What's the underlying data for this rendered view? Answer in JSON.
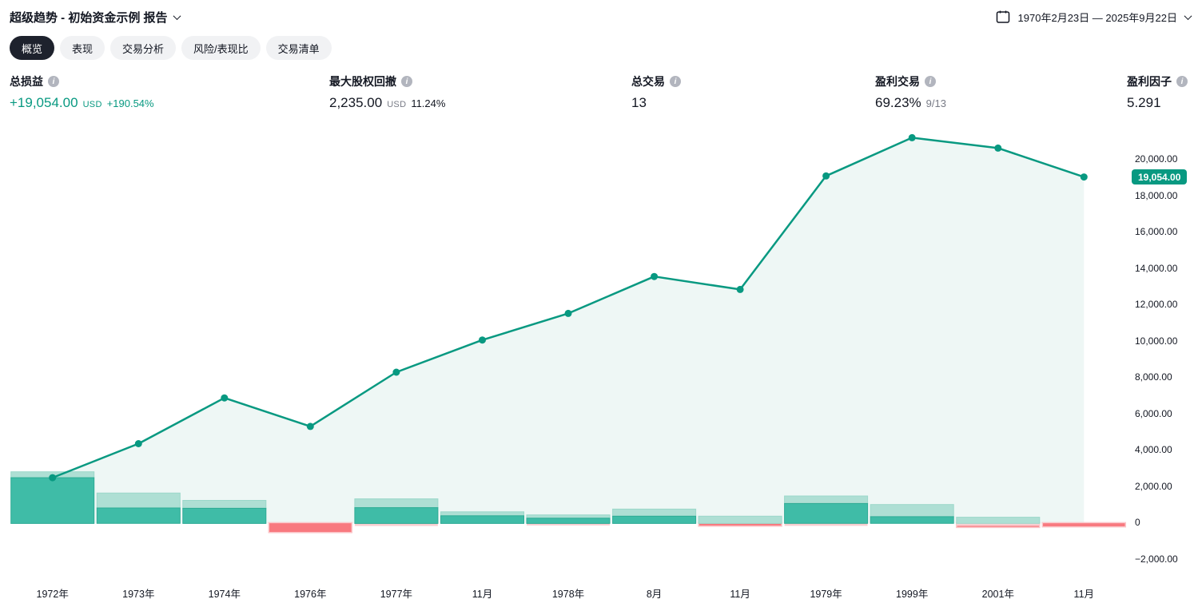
{
  "header": {
    "title": "超级趋势 - 初始资金示例 报告",
    "date_range": "1970年2月23日 — 2025年9月22日"
  },
  "tabs": [
    {
      "label": "概览",
      "selected": true
    },
    {
      "label": "表现",
      "selected": false
    },
    {
      "label": "交易分析",
      "selected": false
    },
    {
      "label": "风险/表现比",
      "selected": false
    },
    {
      "label": "交易清单",
      "selected": false
    }
  ],
  "stats": [
    {
      "label": "总损益",
      "value": "+19,054.00",
      "currency": "USD",
      "secondary": "+190.54%"
    },
    {
      "label": "最大股权回撤",
      "value": "2,235.00",
      "currency": "USD",
      "secondary": "11.24%"
    },
    {
      "label": "总交易",
      "value": "13",
      "currency": "",
      "secondary": ""
    },
    {
      "label": "盈利交易",
      "value": "69.23%",
      "currency": "",
      "secondary": "9/13"
    },
    {
      "label": "盈利因子",
      "value": "5.291",
      "currency": "",
      "secondary": ""
    }
  ],
  "chart_data": {
    "type": "line+bar",
    "title": "",
    "categories": [
      "1972年",
      "1973年",
      "1974年",
      "1976年",
      "1977年",
      "11月",
      "1978年",
      "8月",
      "11月",
      "1979年",
      "1999年",
      "2001年",
      "11月"
    ],
    "series": [
      {
        "name": "equity-curve",
        "type": "line",
        "values": [
          2517,
          4386,
          6904,
          5337,
          8320,
          10087,
          11552,
          13583,
          12868,
          19110,
          21215,
          20645,
          19054
        ]
      }
    ],
    "bars": [
      {
        "gain_light": 2840,
        "gain_dark": 2515,
        "loss_pink": 0,
        "loss_red": 0
      },
      {
        "gain_light": 1670,
        "gain_dark": 850,
        "loss_pink": 0,
        "loss_red": 0
      },
      {
        "gain_light": 1270,
        "gain_dark": 835,
        "loss_pink": 0,
        "loss_red": 0
      },
      {
        "gain_light": 0,
        "gain_dark": 0,
        "loss_pink": 0,
        "loss_red": -500
      },
      {
        "gain_light": 1350,
        "gain_dark": 870,
        "loss_pink": -140,
        "loss_red": 0
      },
      {
        "gain_light": 640,
        "gain_dark": 420,
        "loss_pink": 0,
        "loss_red": 0
      },
      {
        "gain_light": 470,
        "gain_dark": 290,
        "loss_pink": -110,
        "loss_red": 0
      },
      {
        "gain_light": 790,
        "gain_dark": 400,
        "loss_pink": 0,
        "loss_red": 0
      },
      {
        "gain_light": 400,
        "gain_dark": 0,
        "loss_pink": 0,
        "loss_red": -150
      },
      {
        "gain_light": 1510,
        "gain_dark": 1095,
        "loss_pink": -130,
        "loss_red": 0
      },
      {
        "gain_light": 1040,
        "gain_dark": 370,
        "loss_pink": 0,
        "loss_red": 0
      },
      {
        "gain_light": 340,
        "gain_dark": 0,
        "loss_pink": -130,
        "loss_red": -220
      },
      {
        "gain_light": 0,
        "gain_dark": 0,
        "loss_pink": 0,
        "loss_red": -190
      }
    ],
    "ylim": [
      -2400,
      22200
    ],
    "y_tick_values": [
      20000,
      18000,
      16000,
      14000,
      12000,
      10000,
      8000,
      6000,
      4000,
      2000,
      0,
      -2000
    ],
    "y_tick_labels": [
      "20,000.00",
      "18,000.00",
      "16,000.00",
      "14,000.00",
      "12,000.00",
      "10,000.00",
      "8,000.00",
      "6,000.00",
      "4,000.00",
      "2,000.00",
      "0",
      "−2,000.00"
    ],
    "last_value": 19054,
    "last_value_label": "19,054.00",
    "grid": false,
    "legend": "none"
  },
  "colors": {
    "accent_teal": "#089981",
    "bar_dark": "#3fbca7",
    "bar_dark_stroke": "#2eab95",
    "bar_light": "#aedfd4",
    "bar_light_stroke": "#9bd8ca",
    "bar_red": "#f8797f",
    "bar_red_stroke": "#fbc6c9",
    "bar_pink": "#f9ced1",
    "area_fill": "#eef7f5",
    "badge_bg": "#089981",
    "text_dark": "#131722",
    "text_gray": "#787b86",
    "tab_selected_bg": "#1e222d",
    "tab_bg": "#f1f2f4",
    "icon_gray": "#b2b5be"
  }
}
